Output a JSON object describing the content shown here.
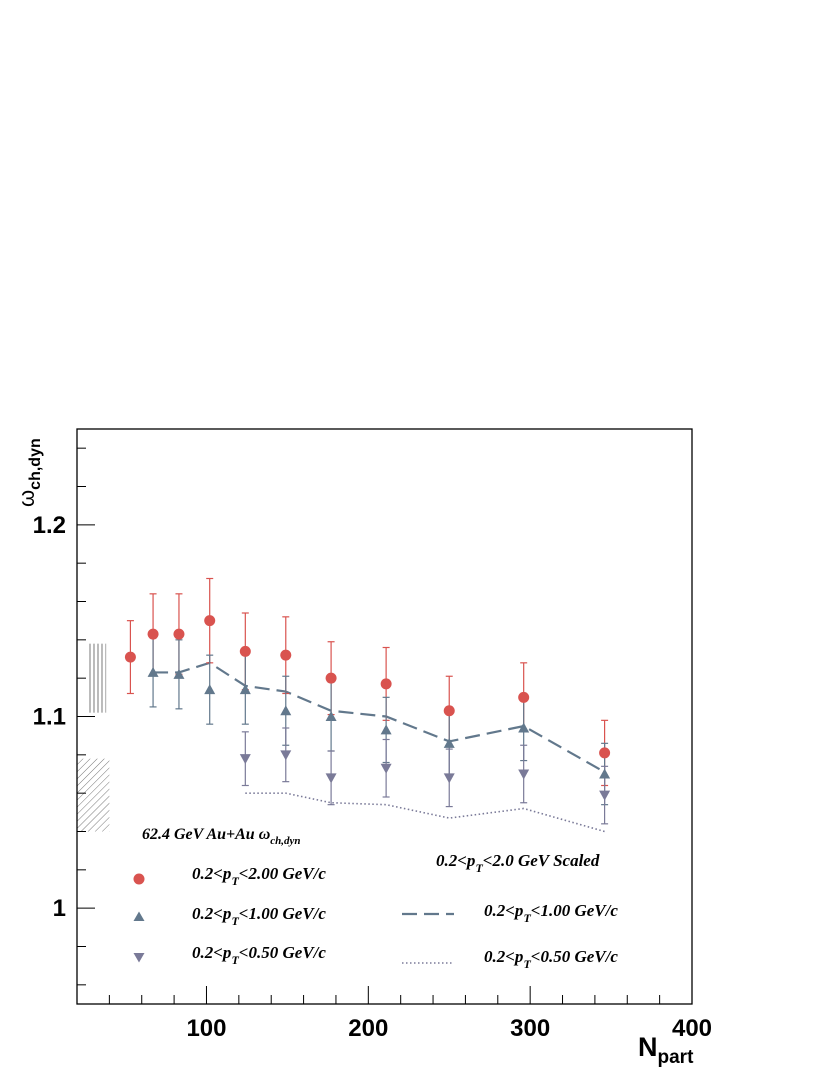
{
  "chart_data": {
    "type": "scatter",
    "xlabel": "N",
    "xlabel_sub": "part",
    "ylabel_main": "ω",
    "ylabel_sub": "ch,dyn",
    "xlim": [
      20,
      400
    ],
    "ylim": [
      0.95,
      1.25
    ],
    "x_ticks": [
      100,
      200,
      300,
      400
    ],
    "x_tick_labels": [
      "100",
      "200",
      "300",
      "400"
    ],
    "y_ticks": [
      1.0,
      1.1,
      1.2
    ],
    "y_tick_labels": [
      "1",
      "1.1",
      "1.2"
    ],
    "grid": false,
    "legend_left": {
      "title": "62.4 GeV Au+Au ω",
      "title_sub": "ch,dyn",
      "entries": [
        {
          "pre": "0.2<p",
          "sub": "T",
          "post": "<2.00 GeV/c"
        },
        {
          "pre": "0.2<p",
          "sub": "T",
          "post": "<1.00 GeV/c"
        },
        {
          "pre": "0.2<p",
          "sub": "T",
          "post": "<0.50 GeV/c"
        }
      ]
    },
    "legend_right": {
      "title_pre": "0.2<p",
      "title_sub": "T",
      "title_post": "<2.0 GeV Scaled",
      "entries": [
        {
          "pre": "0.2<p",
          "sub": "T",
          "post": "<1.00 GeV/c"
        },
        {
          "pre": "0.2<p",
          "sub": "T",
          "post": "<0.50 GeV/c"
        }
      ]
    },
    "series": [
      {
        "marker": "circle",
        "color": "#d9534f",
        "x": [
          53,
          67,
          83,
          102,
          124,
          149,
          177,
          211,
          250,
          296,
          346
        ],
        "y": [
          1.131,
          1.143,
          1.143,
          1.15,
          1.134,
          1.132,
          1.12,
          1.117,
          1.103,
          1.11,
          1.081
        ],
        "err": [
          0.019,
          0.021,
          0.021,
          0.022,
          0.02,
          0.02,
          0.019,
          0.019,
          0.018,
          0.018,
          0.017
        ]
      },
      {
        "marker": "triangle-up",
        "color": "#62788c",
        "x": [
          67,
          83,
          102,
          124,
          149,
          177,
          211,
          250,
          296,
          346
        ],
        "y": [
          1.123,
          1.122,
          1.114,
          1.114,
          1.103,
          1.1,
          1.093,
          1.086,
          1.094,
          1.07
        ],
        "err": [
          0.018,
          0.018,
          0.018,
          0.018,
          0.018,
          0.018,
          0.017,
          0.017,
          0.017,
          0.016
        ]
      },
      {
        "marker": "triangle-down",
        "color": "#7a7a98",
        "x": [
          124,
          149,
          177,
          211,
          250,
          296,
          346
        ],
        "y": [
          1.078,
          1.08,
          1.068,
          1.073,
          1.068,
          1.07,
          1.059
        ],
        "err": [
          0.014,
          0.014,
          0.014,
          0.015,
          0.015,
          0.015,
          0.015
        ]
      }
    ],
    "lines": [
      {
        "style": "dashed",
        "color": "#62788c",
        "x": [
          67,
          83,
          102,
          124,
          149,
          177,
          211,
          250,
          296,
          346
        ],
        "y": [
          1.123,
          1.123,
          1.128,
          1.116,
          1.113,
          1.103,
          1.1,
          1.087,
          1.095,
          1.071
        ]
      },
      {
        "style": "dotted",
        "color": "#7a7a98",
        "x": [
          124,
          149,
          177,
          211,
          250,
          296,
          346
        ],
        "y": [
          1.06,
          1.06,
          1.055,
          1.054,
          1.047,
          1.052,
          1.04
        ]
      }
    ],
    "systematic_bands": [
      {
        "pattern": "vertical",
        "x": [
          26,
          38
        ],
        "y": [
          1.102,
          1.138
        ]
      },
      {
        "pattern": "diagonal",
        "x": [
          20,
          40
        ],
        "y": [
          1.04,
          1.078
        ]
      }
    ]
  }
}
